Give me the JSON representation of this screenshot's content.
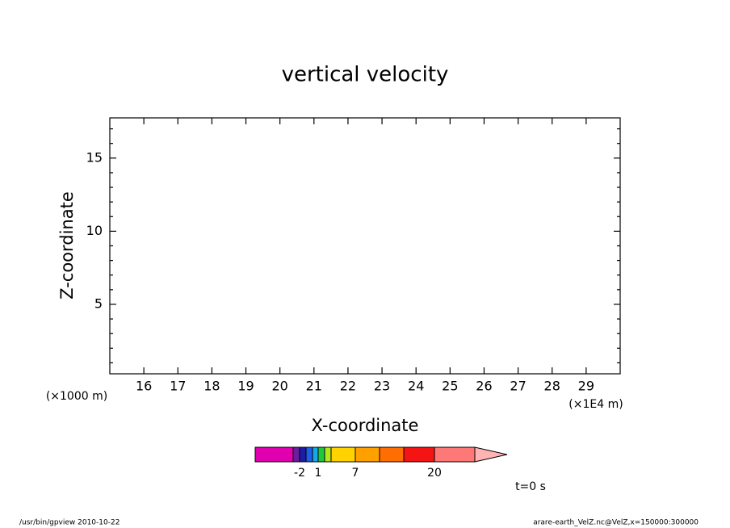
{
  "chart_data": {
    "type": "contour",
    "title": "vertical velocity",
    "x_label": "X-coordinate",
    "y_label": "Z-coordinate",
    "x_unit": "(×1E4 m)",
    "y_unit": "(×1000 m)",
    "xlim": [
      15,
      30
    ],
    "xticks": [
      16,
      17,
      18,
      19,
      20,
      21,
      22,
      23,
      24,
      25,
      26,
      27,
      28,
      29
    ],
    "ylim": [
      0.25,
      17.75
    ],
    "yticks": [
      5,
      10,
      15
    ],
    "yminorticks": [
      1,
      2,
      3,
      4,
      6,
      7,
      8,
      9,
      11,
      12,
      13,
      14,
      16,
      17
    ],
    "colorbar": {
      "colors": [
        "#e000b0",
        "#6a1e9e",
        "#1c1ca6",
        "#1f5ee6",
        "#14a8e6",
        "#1ec83c",
        "#b4e61e",
        "#ffd200",
        "#ffa000",
        "#ff6e00",
        "#f51414",
        "#ff7878",
        "#ffb4b4"
      ],
      "labels": [
        -2,
        1,
        7,
        20
      ]
    },
    "time_label": "t=0 s",
    "footer_left": "/usr/bin/gpview   2010-10-22",
    "footer_right": "arare-earth_VelZ.nc@VelZ,x=150000:300000"
  }
}
